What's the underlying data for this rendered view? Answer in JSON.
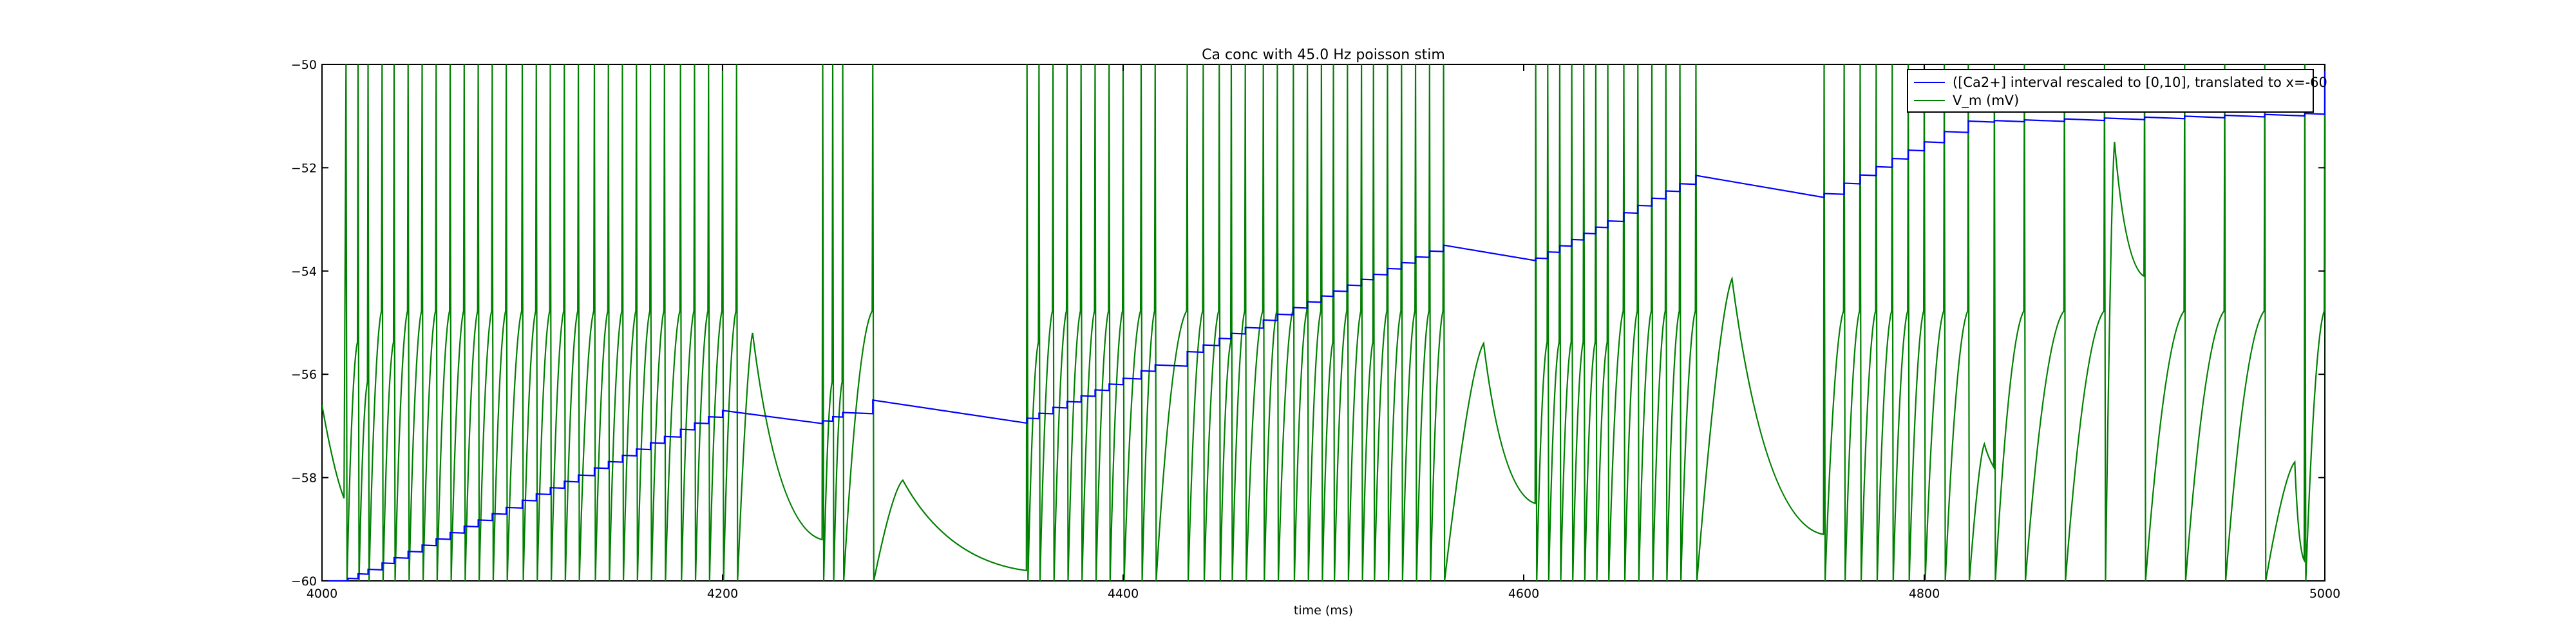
{
  "chart_data": {
    "type": "line",
    "title": "Ca conc with 45.0 Hz poisson stim",
    "xlabel": "time (ms)",
    "ylabel": "",
    "xlim": [
      4000,
      5000
    ],
    "ylim": [
      -60,
      -50
    ],
    "xticks": [
      4000,
      4200,
      4400,
      4600,
      4800,
      5000
    ],
    "yticks": [
      -60,
      -58,
      -56,
      -54,
      -52,
      -50
    ],
    "grid": false,
    "legend_position": "top-right",
    "series": [
      {
        "name": "([Ca2+] interval rescaled to [0,10], translated to x=-60",
        "color": "#0000ff",
        "kind": "staircase",
        "spike_times": [
          4013,
          4018,
          4023,
          4030,
          4036,
          4043,
          4050,
          4057,
          4064,
          4071,
          4078,
          4085,
          4092,
          4100,
          4107,
          4114,
          4121,
          4128,
          4136,
          4143,
          4150,
          4157,
          4164,
          4171,
          4179,
          4186,
          4193,
          4200,
          4250,
          4255,
          4260,
          4275,
          4352,
          4358,
          4365,
          4372,
          4379,
          4386,
          4393,
          4400,
          4409,
          4416,
          4432,
          4440,
          4448,
          4454,
          4461,
          4470,
          4477,
          4485,
          4492,
          4499,
          4505,
          4512,
          4519,
          4525,
          4532,
          4539,
          4546,
          4553,
          4560,
          4606,
          4612,
          4618,
          4624,
          4630,
          4636,
          4642,
          4650,
          4657,
          4664,
          4671,
          4678,
          4686,
          4750,
          4760,
          4768,
          4776,
          4784,
          4792,
          4800,
          4810,
          4822,
          4835,
          4850,
          4870,
          4890,
          4910,
          4930,
          4950,
          4970,
          4990,
          5000
        ],
        "points": [
          [
            4000,
            -60
          ],
          [
            4013,
            -59.95
          ],
          [
            4200,
            -56.7
          ],
          [
            4250,
            -56.9
          ],
          [
            4275,
            -56.5
          ],
          [
            4352,
            -56.85
          ],
          [
            4560,
            -53.5
          ],
          [
            4606,
            -53.75
          ],
          [
            4686,
            -52.15
          ],
          [
            4750,
            -52.5
          ],
          [
            4820,
            -51.1
          ],
          [
            4990,
            -50.95
          ],
          [
            5000,
            -50
          ]
        ]
      },
      {
        "name": "V_m (mV)",
        "color": "#008000",
        "kind": "spike_train",
        "start": [
          4000,
          -56.6
        ],
        "spike_times": [
          4012,
          4018,
          4023,
          4030,
          4036,
          4043,
          4050,
          4057,
          4064,
          4071,
          4078,
          4085,
          4092,
          4100,
          4107,
          4114,
          4121,
          4128,
          4136,
          4143,
          4150,
          4157,
          4164,
          4171,
          4179,
          4186,
          4193,
          4200,
          4207,
          4250,
          4255,
          4260,
          4275,
          4352,
          4358,
          4365,
          4372,
          4379,
          4386,
          4393,
          4400,
          4409,
          4416,
          4432,
          4440,
          4448,
          4454,
          4461,
          4470,
          4477,
          4485,
          4492,
          4499,
          4505,
          4512,
          4519,
          4525,
          4532,
          4539,
          4546,
          4553,
          4560,
          4606,
          4612,
          4618,
          4624,
          4630,
          4636,
          4642,
          4650,
          4657,
          4664,
          4671,
          4678,
          4686,
          4750,
          4760,
          4768,
          4776,
          4784,
          4792,
          4800,
          4810,
          4822,
          4835,
          4850,
          4870,
          4890,
          4910,
          4930,
          4950,
          4970,
          4990,
          5000
        ],
        "spike_peak": -50,
        "reset": -60,
        "bumps": [
          {
            "t0": 4207,
            "t1": 4250,
            "peak_t": 4215,
            "peak_v": -55.2,
            "end_v": -59.2
          },
          {
            "t0": 4275,
            "t1": 4352,
            "peak_t": 4290,
            "peak_v": -58.05,
            "end_v": -59.8
          },
          {
            "t0": 4560,
            "t1": 4606,
            "peak_t": 4580,
            "peak_v": -55.4,
            "end_v": -58.5
          },
          {
            "t0": 4686,
            "t1": 4750,
            "peak_t": 4704,
            "peak_v": -54.15,
            "end_v": -59.1
          },
          {
            "t0": 4822,
            "t1": 4835,
            "peak_t": 4830,
            "peak_v": -57.35,
            "end_v": -57.8
          },
          {
            "t0": 4890,
            "t1": 4910,
            "peak_t": 4895,
            "peak_v": -51.5,
            "end_v": -54.1
          },
          {
            "t0": 4970,
            "t1": 4990,
            "peak_t": 4985,
            "peak_v": -57.7,
            "end_v": -59.6
          }
        ]
      }
    ]
  }
}
